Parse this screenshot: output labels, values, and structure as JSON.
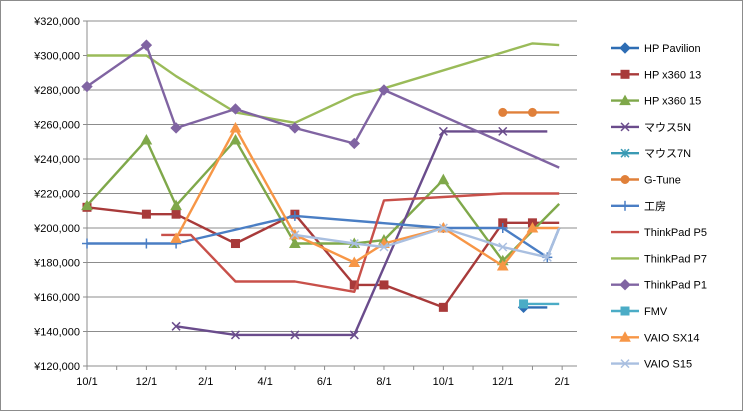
{
  "chart_data": {
    "type": "line",
    "xlabel": "",
    "ylabel": "",
    "ylim": [
      120000,
      320000
    ],
    "y_ticks": [
      "¥120,000",
      "¥140,000",
      "¥160,000",
      "¥180,000",
      "¥200,000",
      "¥220,000",
      "¥240,000",
      "¥260,000",
      "¥280,000",
      "¥300,000",
      "¥320,000"
    ],
    "x_ticks": [
      "10/1",
      "12/1",
      "2/1",
      "4/1",
      "6/1",
      "8/1",
      "10/1",
      "12/1",
      "2/1"
    ],
    "grid": "horizontal",
    "legend_position": "right",
    "series": [
      {
        "name": "HP Pavilion",
        "color": "#2E6DB4",
        "marker": "diamond",
        "points": [
          [
            14.7,
            154000
          ],
          [
            15.5,
            154000
          ]
        ]
      },
      {
        "name": "HP x360 13",
        "color": "#A83A3A",
        "marker": "square",
        "points": [
          [
            0,
            212000
          ],
          [
            2,
            208000
          ],
          [
            3,
            208000
          ],
          [
            5,
            191000
          ],
          [
            7,
            208000
          ],
          [
            9,
            167000
          ],
          [
            10,
            167000
          ],
          [
            12,
            154000
          ],
          [
            14,
            203000
          ],
          [
            15,
            203000
          ],
          [
            15.9,
            203000
          ]
        ]
      },
      {
        "name": "HP x360 15",
        "color": "#7FA84A",
        "marker": "triangle",
        "points": [
          [
            0,
            213000
          ],
          [
            2,
            251000
          ],
          [
            3,
            213000
          ],
          [
            5,
            251000
          ],
          [
            7,
            191000
          ],
          [
            9,
            191000
          ],
          [
            10,
            193000
          ],
          [
            12,
            228000
          ],
          [
            14,
            181000
          ],
          [
            15.9,
            214000
          ]
        ]
      },
      {
        "name": "マウス5N",
        "color": "#6A4C8C",
        "marker": "x",
        "points": [
          [
            3,
            143000
          ],
          [
            5,
            138000
          ],
          [
            7,
            138000
          ],
          [
            9,
            138000
          ],
          [
            12,
            256000
          ],
          [
            14,
            256000
          ],
          [
            15.5,
            256000
          ]
        ]
      },
      {
        "name": "マウス7N",
        "color": "#3A9AB4",
        "marker": "star",
        "points": []
      },
      {
        "name": "G-Tune",
        "color": "#E0803A",
        "marker": "circle",
        "points": [
          [
            14,
            267000
          ],
          [
            15,
            267000
          ],
          [
            15.9,
            267000
          ]
        ]
      },
      {
        "name": "工房",
        "color": "#4A7EC4",
        "marker": "plus",
        "points": [
          [
            0,
            191000
          ],
          [
            2,
            191000
          ],
          [
            3,
            191000
          ],
          [
            7,
            207000
          ],
          [
            12,
            200000
          ],
          [
            14,
            200000
          ],
          [
            15.5,
            183000
          ],
          [
            15.9,
            200000
          ]
        ]
      },
      {
        "name": "ThinkPad P5",
        "color": "#C8504A",
        "marker": "none",
        "points": [
          [
            2.5,
            196000
          ],
          [
            3.5,
            196000
          ],
          [
            5,
            169000
          ],
          [
            7,
            169000
          ],
          [
            9,
            163000
          ],
          [
            10,
            216000
          ],
          [
            12,
            218000
          ],
          [
            14,
            220000
          ],
          [
            15.9,
            220000
          ]
        ]
      },
      {
        "name": "ThinkPad P7",
        "color": "#9ABB59",
        "marker": "none",
        "points": [
          [
            0,
            300000
          ],
          [
            2,
            300000
          ],
          [
            3,
            288000
          ],
          [
            5,
            267000
          ],
          [
            7,
            261000
          ],
          [
            9,
            277000
          ],
          [
            10,
            281000
          ],
          [
            15,
            307000
          ],
          [
            15.9,
            306000
          ]
        ]
      },
      {
        "name": "ThinkPad P1",
        "color": "#8064A2",
        "marker": "diamond",
        "points": [
          [
            0,
            282000
          ],
          [
            2,
            306000
          ],
          [
            3,
            258000
          ],
          [
            5,
            269000
          ],
          [
            7,
            258000
          ],
          [
            9,
            249000
          ],
          [
            10,
            280000
          ],
          [
            15.9,
            235000
          ]
        ]
      },
      {
        "name": "FMV",
        "color": "#4BACC6",
        "marker": "square",
        "points": [
          [
            14.7,
            156000
          ],
          [
            15.9,
            156000
          ]
        ]
      },
      {
        "name": "VAIO SX14",
        "color": "#F79646",
        "marker": "triangle",
        "points": [
          [
            3,
            194000
          ],
          [
            5,
            258000
          ],
          [
            7,
            196000
          ],
          [
            9,
            180000
          ],
          [
            10,
            191000
          ],
          [
            12,
            200000
          ],
          [
            14,
            178000
          ],
          [
            15,
            200000
          ],
          [
            15.9,
            200000
          ]
        ]
      },
      {
        "name": "VAIO S15",
        "color": "#A9BFE0",
        "marker": "x",
        "points": [
          [
            7,
            196000
          ],
          [
            9,
            191000
          ],
          [
            10,
            189000
          ],
          [
            12,
            200000
          ],
          [
            14,
            189000
          ],
          [
            15.5,
            183000
          ],
          [
            15.9,
            200000
          ]
        ]
      }
    ]
  }
}
